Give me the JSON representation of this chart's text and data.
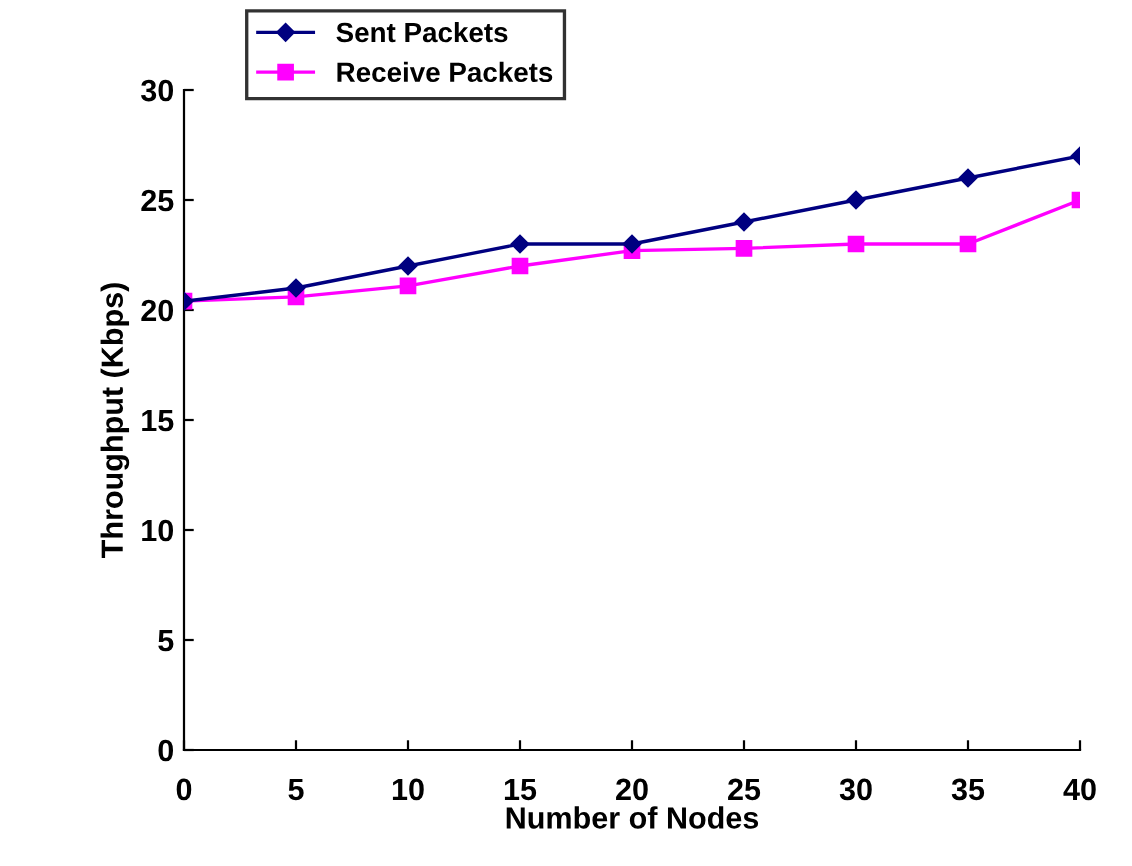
{
  "chart_data": {
    "type": "line",
    "xlabel": "Number of Nodes",
    "ylabel": "Throughput (Kbps)",
    "x": [
      0,
      5,
      10,
      15,
      20,
      25,
      30,
      35,
      40
    ],
    "series": [
      {
        "name": "Sent Packets",
        "color": "#000080",
        "marker": "diamond",
        "values": [
          20.4,
          21,
          22,
          23,
          23,
          24,
          25,
          26,
          27
        ]
      },
      {
        "name": "Receive Packets",
        "color": "#ff00ff",
        "marker": "square",
        "values": [
          20.4,
          20.6,
          21.1,
          22,
          22.7,
          22.8,
          23,
          23,
          25
        ]
      }
    ],
    "xlim": [
      0,
      40
    ],
    "xticks": [
      0,
      5,
      10,
      15,
      20,
      25,
      30,
      35,
      40
    ],
    "ylim": [
      0,
      30
    ],
    "yticks": [
      0,
      5,
      10,
      15,
      20,
      25,
      30
    ],
    "grid": false,
    "legend": "top left",
    "line_style": "solid"
  }
}
